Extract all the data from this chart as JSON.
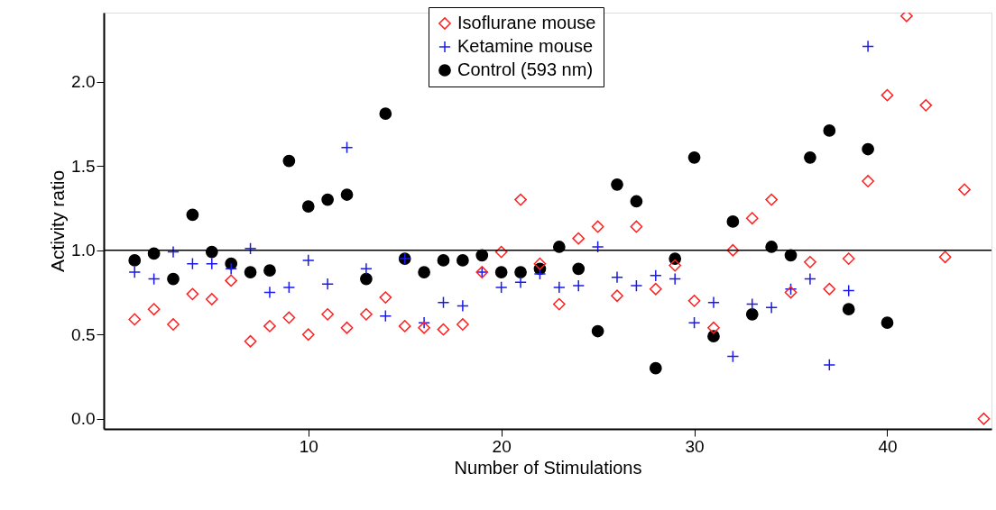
{
  "chart_data": {
    "type": "scatter",
    "xlabel": "Number of Stimulations",
    "ylabel": "Activity ratio",
    "x": [
      1,
      2,
      3,
      4,
      5,
      6,
      7,
      8,
      9,
      10,
      11,
      12,
      13,
      14,
      15,
      16,
      17,
      18,
      19,
      20,
      21,
      22,
      23,
      24,
      25,
      26,
      27,
      28,
      29,
      30,
      31,
      32,
      33,
      34,
      35,
      36,
      37,
      38,
      39,
      40,
      41,
      42,
      43,
      44,
      45
    ],
    "series": [
      {
        "name": "Isoflurane mouse",
        "color": "#ff2020",
        "marker": "diamond",
        "values": [
          0.59,
          0.65,
          0.56,
          0.74,
          0.71,
          0.82,
          0.46,
          0.55,
          0.6,
          0.5,
          0.62,
          0.54,
          0.62,
          0.72,
          0.55,
          0.54,
          0.53,
          0.56,
          0.87,
          0.99,
          1.3,
          0.92,
          0.68,
          1.07,
          1.14,
          0.73,
          1.14,
          0.77,
          0.91,
          0.7,
          0.54,
          1.0,
          1.19,
          1.3,
          0.75,
          0.93,
          0.77,
          0.95,
          1.41,
          1.92,
          2.39,
          1.86,
          0.96,
          1.36,
          0.0
        ]
      },
      {
        "name": "Ketamine mouse",
        "color": "#1a1aee",
        "marker": "cross",
        "values": [
          0.87,
          0.83,
          0.99,
          0.92,
          0.92,
          0.89,
          1.01,
          0.75,
          0.78,
          0.94,
          0.8,
          1.61,
          0.89,
          0.61,
          0.95,
          0.57,
          0.69,
          0.67,
          0.87,
          0.78,
          0.81,
          0.86,
          0.78,
          0.79,
          1.02,
          0.84,
          0.79,
          0.85,
          0.83,
          0.57,
          0.69,
          0.37,
          0.68,
          0.66,
          0.77,
          0.83,
          0.32,
          0.76,
          2.21,
          null,
          null,
          null,
          null,
          null,
          null
        ]
      },
      {
        "name": "Control (593 nm)",
        "color": "#000000",
        "marker": "circle",
        "values": [
          0.94,
          0.98,
          0.83,
          1.21,
          0.99,
          0.92,
          0.87,
          0.88,
          1.53,
          1.26,
          1.3,
          1.33,
          0.83,
          1.81,
          0.95,
          0.87,
          0.94,
          0.94,
          0.97,
          0.87,
          0.87,
          0.89,
          1.02,
          0.89,
          0.52,
          1.39,
          1.29,
          0.3,
          0.95,
          1.55,
          0.49,
          1.17,
          0.62,
          1.02,
          0.97,
          1.55,
          1.71,
          0.65,
          1.6,
          0.57,
          null,
          null,
          null,
          null,
          null
        ]
      }
    ],
    "xlim": [
      -0.6,
      45.4
    ],
    "xticks": [
      10,
      20,
      30,
      40
    ],
    "ylim": [
      -0.06,
      2.41
    ],
    "yticks": [
      {
        "value": 0,
        "label": "0.0"
      },
      {
        "value": 0.5,
        "label": "0.5"
      },
      {
        "value": 1,
        "label": "1.0"
      },
      {
        "value": 1.5,
        "label": "1.5"
      },
      {
        "value": 2,
        "label": "2.0"
      }
    ],
    "ref_lines": [
      {
        "axis": "y",
        "value": 1,
        "color": "#000000"
      }
    ],
    "grid": false,
    "legend": "top"
  }
}
